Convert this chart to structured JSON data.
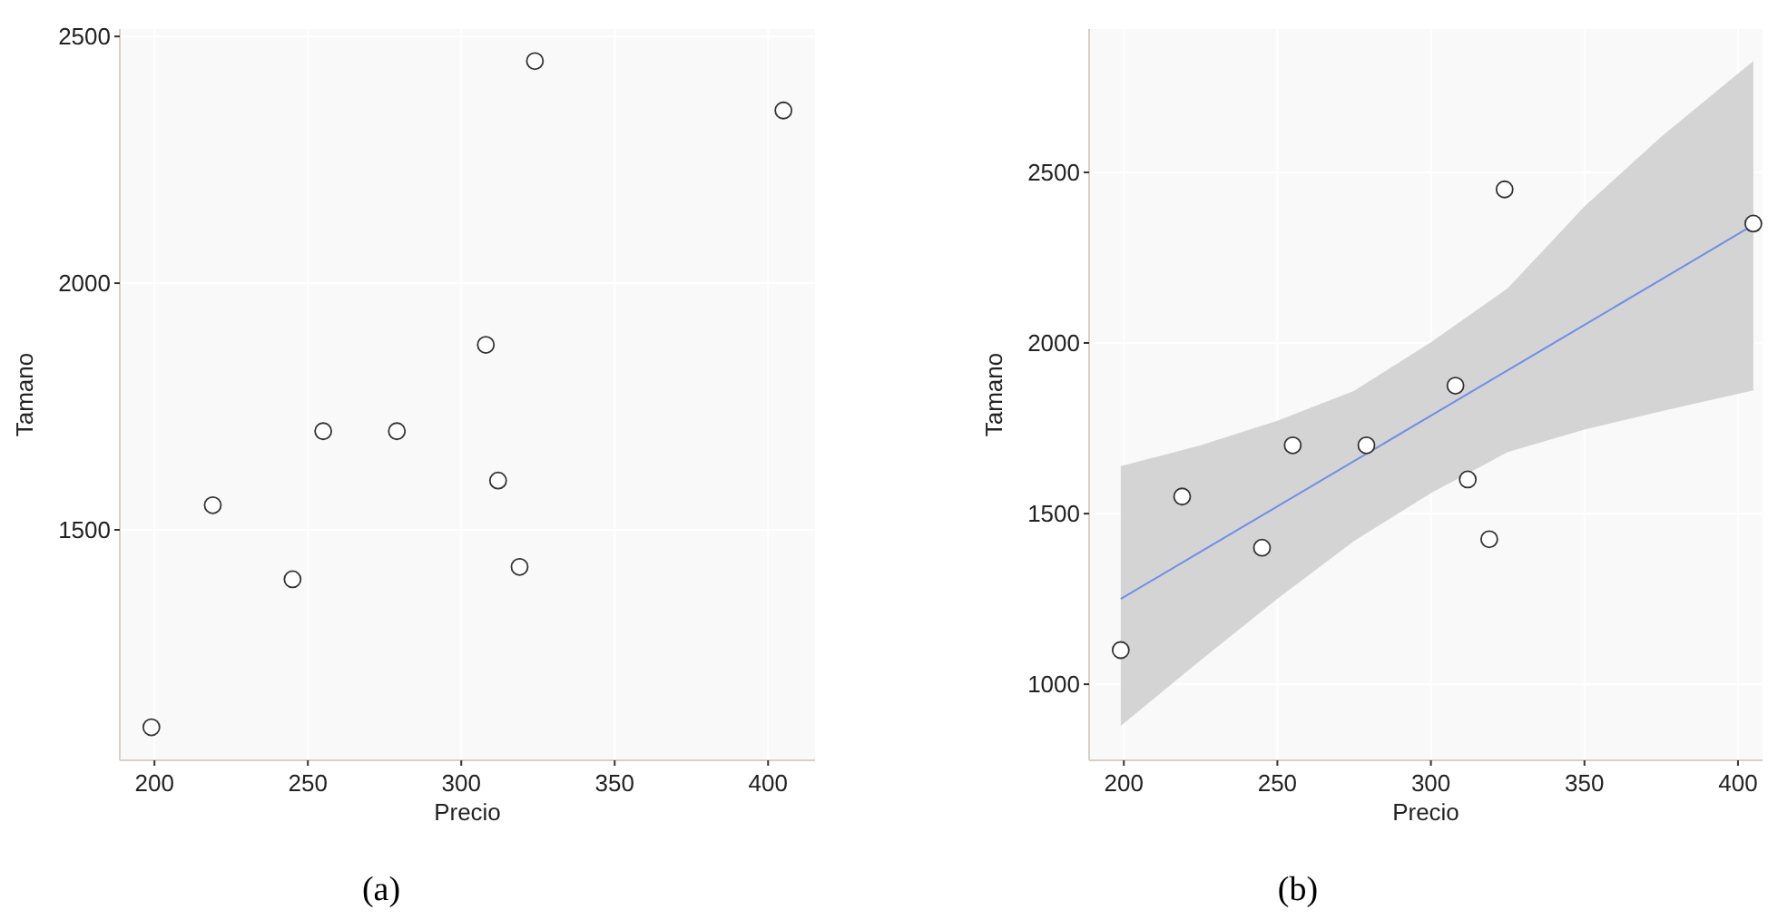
{
  "chart_data": [
    {
      "type": "scatter",
      "xlabel": "Precio",
      "ylabel": "Tamano",
      "annotations": [
        "(a)"
      ],
      "x": [
        199,
        219,
        245,
        255,
        279,
        308,
        312,
        319,
        324,
        405
      ],
      "values": [
        1100,
        1550,
        1400,
        1700,
        1700,
        1875,
        1600,
        1425,
        2450,
        2350
      ],
      "color": "#333333",
      "marker": "circle",
      "xlim": [
        188.7,
        415.3
      ],
      "ylim": [
        1033,
        2515
      ],
      "xticks": [
        200,
        250,
        300,
        350,
        400
      ],
      "yticks": [
        1500,
        2000,
        2500
      ],
      "grid": true
    },
    {
      "type": "scatter",
      "xlabel": "Precio",
      "ylabel": "Tamano",
      "annotations": [
        "(b)"
      ],
      "xlim": [
        188.7,
        408
      ],
      "ylim": [
        777,
        2920
      ],
      "xticks": [
        200,
        250,
        300,
        350,
        400
      ],
      "yticks": [
        1000,
        1500,
        2000,
        2500
      ],
      "grid": true,
      "series": [
        {
          "type": "line",
          "color": "#6f8fe8",
          "x": [
            199,
            225,
            250,
            275,
            300,
            325,
            350,
            375,
            405
          ],
          "values": [
            1250,
            1388,
            1521,
            1654,
            1787,
            1920,
            2053,
            2186,
            2346
          ],
          "lower": [
            878,
            1070,
            1250,
            1420,
            1560,
            1680,
            1746,
            1800,
            1861
          ],
          "upper": [
            1639,
            1700,
            1772,
            1860,
            2002,
            2160,
            2400,
            2604,
            2826
          ]
        },
        {
          "marker": "circle",
          "color": "#333333",
          "x": [
            199,
            219,
            245,
            255,
            279,
            308,
            312,
            319,
            324,
            405
          ],
          "values": [
            1100,
            1550,
            1400,
            1700,
            1700,
            1875,
            1600,
            1425,
            2450,
            2350
          ]
        }
      ]
    }
  ]
}
